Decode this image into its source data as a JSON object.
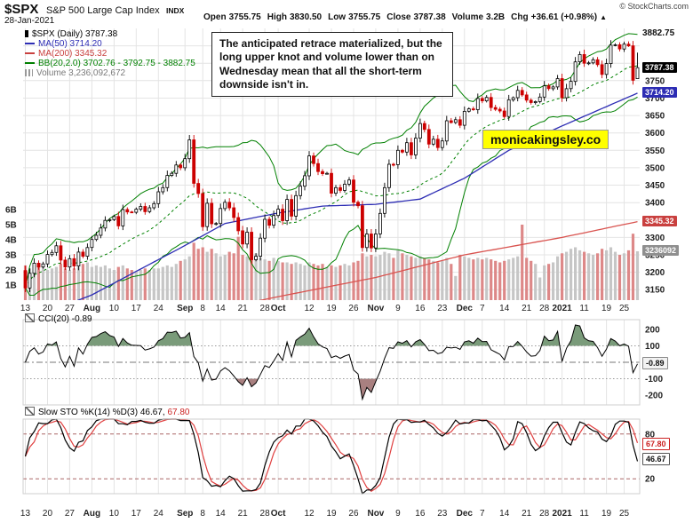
{
  "header": {
    "symbol": "$SPX",
    "name": "S&P 500 Large Cap Index",
    "exchange": "INDX",
    "date": "28-Jan-2021",
    "copyright": "© StockCharts.com",
    "arrow": "▲",
    "quote": [
      {
        "label": "Open",
        "value": "3755.75"
      },
      {
        "label": "High",
        "value": "3830.50"
      },
      {
        "label": "Low",
        "value": "3755.75"
      },
      {
        "label": "Close",
        "value": "3787.38"
      },
      {
        "label": "Volume",
        "value": "3.2B"
      },
      {
        "label": "Chg",
        "value": "+36.61 (+0.98%)"
      }
    ]
  },
  "legend": {
    "rows": [
      {
        "icon": "candle",
        "text": "$SPX (Daily) 3787.38",
        "color": "#000000"
      },
      {
        "icon": "line",
        "text": "MA(50) 3714.20",
        "color": "#2d2db4"
      },
      {
        "icon": "line",
        "text": "MA(200) 3345.32",
        "color": "#c9403f"
      },
      {
        "icon": "line",
        "text": "BB(20,2.0) 3702.76 - 3792.75 - 3882.75",
        "color": "#008000"
      },
      {
        "icon": "bars",
        "text": "Volume 3,236,092,672",
        "color": "#7a7a7a"
      }
    ]
  },
  "annotation": {
    "text": "The anticipated retrace materialized, but the long upper knot and volume lower than on Wednesday mean that all the short-term downside isn't in."
  },
  "watermark": {
    "text": "monicakingsley.co",
    "bg": "#ffff00"
  },
  "cci_legend": {
    "parts": [
      {
        "text": "CCI(20) -0.89",
        "color": "#000000"
      }
    ]
  },
  "sto_legend": {
    "parts": [
      {
        "text": "Slow STO %K(14) %D(3) 46.67, ",
        "color": "#000000"
      },
      {
        "text": "67.80",
        "color": "#cc2222"
      }
    ]
  },
  "chart_data": {
    "type": "candlestick",
    "title": "$SPX (Daily)",
    "ylim": [
      3120,
      3900
    ],
    "ygrid_lines": [
      3150,
      3200,
      3250,
      3300,
      3350,
      3400,
      3450,
      3500,
      3550,
      3600,
      3650,
      3700,
      3750,
      3800,
      3850
    ],
    "ygrid_labels": [
      3750,
      3700,
      3650,
      3600,
      3550,
      3500,
      3450,
      3400,
      3350,
      3300,
      3250,
      3200,
      3150
    ],
    "vol_axis": [
      {
        "v": 6,
        "l": "6B"
      },
      {
        "v": 5,
        "l": "5B"
      },
      {
        "v": 4,
        "l": "4B"
      },
      {
        "v": 3,
        "l": "3B"
      },
      {
        "v": 2,
        "l": "2B"
      },
      {
        "v": 1,
        "l": "1B"
      }
    ],
    "xticks": [
      {
        "i": 0,
        "l": "13"
      },
      {
        "i": 5,
        "l": "20"
      },
      {
        "i": 10,
        "l": "27"
      },
      {
        "i": 15,
        "l": "Aug",
        "b": 1
      },
      {
        "i": 20,
        "l": "10"
      },
      {
        "i": 25,
        "l": "17"
      },
      {
        "i": 30,
        "l": "24"
      },
      {
        "i": 36,
        "l": "Sep",
        "b": 1
      },
      {
        "i": 40,
        "l": "8"
      },
      {
        "i": 44,
        "l": "14"
      },
      {
        "i": 49,
        "l": "21"
      },
      {
        "i": 54,
        "l": "28"
      },
      {
        "i": 57,
        "l": "Oct",
        "b": 1
      },
      {
        "i": 64,
        "l": "12"
      },
      {
        "i": 69,
        "l": "19"
      },
      {
        "i": 74,
        "l": "26"
      },
      {
        "i": 79,
        "l": "Nov",
        "b": 1
      },
      {
        "i": 84,
        "l": "9"
      },
      {
        "i": 89,
        "l": "16"
      },
      {
        "i": 94,
        "l": "23"
      },
      {
        "i": 99,
        "l": "Dec",
        "b": 1
      },
      {
        "i": 103,
        "l": "7"
      },
      {
        "i": 108,
        "l": "14"
      },
      {
        "i": 113,
        "l": "21"
      },
      {
        "i": 117,
        "l": "28"
      },
      {
        "i": 121,
        "l": "2021",
        "b": 1
      },
      {
        "i": 126,
        "l": "11"
      },
      {
        "i": 131,
        "l": "19"
      },
      {
        "i": 135,
        "l": "25"
      }
    ],
    "first_open": 3205,
    "last_candle": {
      "open": 3755.75,
      "high": 3830.5,
      "low": 3755.75,
      "close": 3787.38
    },
    "closes": [
      3155,
      3197,
      3226,
      3215,
      3224,
      3251,
      3257,
      3276,
      3235,
      3215,
      3239,
      3218,
      3258,
      3246,
      3271,
      3294,
      3306,
      3327,
      3349,
      3351,
      3360,
      3333,
      3380,
      3373,
      3372,
      3381,
      3389,
      3374,
      3385,
      3397,
      3431,
      3443,
      3478,
      3484,
      3508,
      3500,
      3526,
      3580,
      3455,
      3426,
      3331,
      3398,
      3339,
      3340,
      3383,
      3401,
      3385,
      3357,
      3319,
      3281,
      3315,
      3236,
      3246,
      3298,
      3352,
      3335,
      3363,
      3381,
      3348,
      3409,
      3361,
      3420,
      3447,
      3477,
      3534,
      3512,
      3489,
      3483,
      3484,
      3427,
      3443,
      3435,
      3453,
      3465,
      3401,
      3391,
      3271,
      3310,
      3270,
      3310,
      3369,
      3443,
      3510,
      3509,
      3550,
      3545,
      3572,
      3537,
      3585,
      3627,
      3610,
      3568,
      3582,
      3558,
      3577,
      3635,
      3630,
      3638,
      3622,
      3662,
      3669,
      3667,
      3699,
      3692,
      3702,
      3673,
      3668,
      3663,
      3647,
      3695,
      3701,
      3722,
      3709,
      3694,
      3687,
      3690,
      3703,
      3735,
      3727,
      3732,
      3756,
      3701,
      3727,
      3748,
      3804,
      3825,
      3800,
      3801,
      3810,
      3796,
      3768,
      3799,
      3852,
      3853,
      3841,
      3855,
      3850,
      3751,
      3787.38
    ],
    "volumes_B": [
      2.3,
      2.1,
      2.2,
      2.3,
      2.2,
      2.0,
      2.1,
      2.2,
      2.4,
      2.1,
      2.0,
      2.1,
      2.2,
      2.4,
      2.5,
      2.2,
      2.3,
      2.2,
      2.3,
      2.1,
      2.0,
      2.2,
      2.3,
      2.1,
      2.0,
      1.9,
      2.0,
      2.1,
      2.0,
      2.1,
      2.1,
      2.2,
      2.3,
      2.2,
      2.4,
      2.6,
      2.7,
      2.9,
      3.8,
      3.4,
      3.5,
      3.2,
      3.4,
      3.1,
      2.9,
      3.0,
      3.2,
      3.1,
      4.2,
      3.0,
      2.9,
      3.3,
      3.1,
      2.8,
      2.7,
      2.6,
      2.8,
      2.6,
      2.5,
      2.5,
      2.4,
      2.5,
      2.4,
      2.3,
      2.5,
      2.4,
      2.3,
      2.4,
      2.2,
      2.3,
      2.2,
      2.3,
      2.4,
      2.3,
      2.5,
      2.6,
      3.1,
      2.9,
      3.0,
      2.9,
      3.0,
      3.2,
      3.1,
      2.8,
      3.3,
      3.1,
      3.0,
      2.9,
      2.8,
      2.9,
      2.8,
      2.7,
      2.6,
      2.5,
      2.6,
      2.8,
      2.4,
      1.6,
      3.0,
      2.9,
      2.8,
      2.7,
      2.8,
      2.7,
      2.8,
      2.7,
      2.6,
      2.5,
      2.6,
      2.7,
      2.8,
      2.9,
      5.0,
      2.8,
      2.6,
      2.4,
      1.5,
      2.3,
      2.4,
      2.5,
      2.9,
      3.1,
      3.2,
      3.4,
      3.5,
      3.3,
      3.2,
      3.1,
      3.0,
      3.1,
      3.4,
      3.3,
      3.5,
      3.2,
      3.0,
      3.1,
      3.3,
      4.4,
      3.236
    ],
    "ma50_points": [
      [
        0,
        3060
      ],
      [
        15,
        3135
      ],
      [
        35,
        3270
      ],
      [
        45,
        3340
      ],
      [
        57,
        3370
      ],
      [
        67,
        3390
      ],
      [
        79,
        3395
      ],
      [
        89,
        3410
      ],
      [
        99,
        3470
      ],
      [
        109,
        3550
      ],
      [
        121,
        3620
      ],
      [
        130,
        3670
      ],
      [
        138,
        3714.2
      ]
    ],
    "ma200_points": [
      [
        0,
        3000
      ],
      [
        36,
        3075
      ],
      [
        57,
        3130
      ],
      [
        79,
        3185
      ],
      [
        99,
        3250
      ],
      [
        121,
        3300
      ],
      [
        138,
        3345.32
      ]
    ],
    "bb": {
      "window": 20,
      "mult": 2,
      "last_lower": 3702.76,
      "last_middle": 3792.75,
      "last_upper": 3882.75
    },
    "right_badges": [
      {
        "text": "3882.75",
        "v": 3882.75,
        "scale": "price",
        "plain": true
      },
      {
        "text": "3787.38",
        "v": 3787.38,
        "scale": "price",
        "bg": "#000000",
        "fg": "#ffffff"
      },
      {
        "text": "3714.20",
        "v": 3714.2,
        "scale": "price",
        "bg": "#2d2db4",
        "fg": "#ffffff"
      },
      {
        "text": "3345.32",
        "v": 3345.32,
        "scale": "price",
        "bg": "#c9403f",
        "fg": "#ffffff"
      },
      {
        "text": "3236092",
        "v": 3.236,
        "scale": "vol",
        "bg": "#8f8f8f",
        "fg": "#ffffff"
      },
      {
        "text": "-0.89",
        "v": -0.89,
        "scale": "cci",
        "bg": "#f2f2f2",
        "fg": "#111111",
        "border": "#888888"
      },
      {
        "text": "67.80",
        "v": 67.8,
        "scale": "sto",
        "bg": "#ffffff",
        "fg": "#cc2222",
        "border": "#cc2222"
      },
      {
        "text": "46.67",
        "v": 46.67,
        "scale": "sto",
        "bg": "#ffffff",
        "fg": "#111111",
        "border": "#555555"
      }
    ],
    "cci": {
      "window": 20,
      "last": -0.89,
      "labels": [
        200,
        100,
        -100,
        -200
      ],
      "dotted_levels": [
        100,
        -100
      ],
      "zero_level": 0,
      "range": [
        -260,
        260
      ]
    },
    "sto": {
      "k_period": 14,
      "slowing": 3,
      "d_period": 3,
      "last_k": 46.67,
      "last_d": 67.8,
      "levels": [
        80,
        20
      ]
    },
    "colors": {
      "up_stroke": "#000000",
      "up_fill": "#ffffff",
      "down": "#cc0000",
      "ma50": "#2d2db4",
      "ma200": "#d9534f",
      "bb": "#008000",
      "vol_up": "#c6c6c6",
      "vol_down": "#dd8888",
      "grid": "#e4e4e4",
      "panel_border": "#cfcfcf",
      "cci_line": "#000000",
      "cci_above": "#7a9b7a",
      "cci_below": "#a98080",
      "sto_k": "#000000",
      "sto_d": "#e04040",
      "sto_levels": "#aa6666"
    }
  }
}
